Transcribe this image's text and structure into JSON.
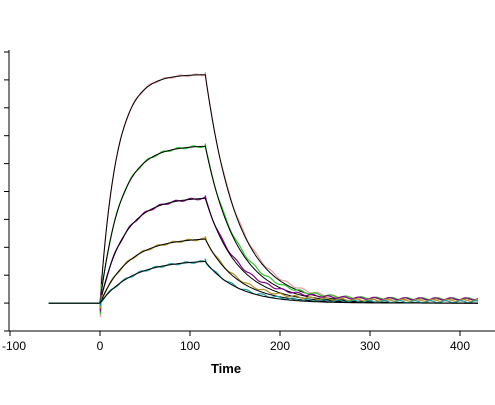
{
  "chart_data": {
    "type": "line",
    "title": "",
    "xlabel": "Time",
    "ylabel": "",
    "xlim": [
      -100,
      430
    ],
    "ylim": [
      0,
      100
    ],
    "x_ticks": [
      -100,
      0,
      100,
      200,
      300,
      400
    ],
    "x_tick_labels": [
      "-100",
      "0",
      "100",
      "200",
      "300",
      "400"
    ],
    "y_ticks": [
      0,
      10,
      20,
      30,
      40,
      50,
      60,
      70,
      80,
      90,
      100
    ],
    "grid": false,
    "legend": "none",
    "association_end": 117,
    "baseline_start": -57,
    "end_time": 420,
    "curves": [
      {
        "plateau": 82.0,
        "ka": 0.055,
        "kd": 0.028,
        "offset": 1.0,
        "measured_color": "#e8a0a0",
        "fit_color": "#000000"
      },
      {
        "plateau": 56.5,
        "ka": 0.045,
        "kd": 0.028,
        "offset": 1.5,
        "measured_color": "#2ec42e",
        "fit_color": "#000000"
      },
      {
        "plateau": 38.0,
        "ka": 0.038,
        "kd": 0.028,
        "offset": 1.5,
        "measured_color": "#800080",
        "fit_color": "#000000"
      },
      {
        "plateau": 23.5,
        "ka": 0.032,
        "kd": 0.028,
        "offset": 1.0,
        "measured_color": "#b09020",
        "fit_color": "#000000"
      },
      {
        "plateau": 15.5,
        "ka": 0.028,
        "kd": 0.028,
        "offset": 0.5,
        "measured_color": "#1a9c9c",
        "fit_color": "#000000"
      }
    ]
  }
}
